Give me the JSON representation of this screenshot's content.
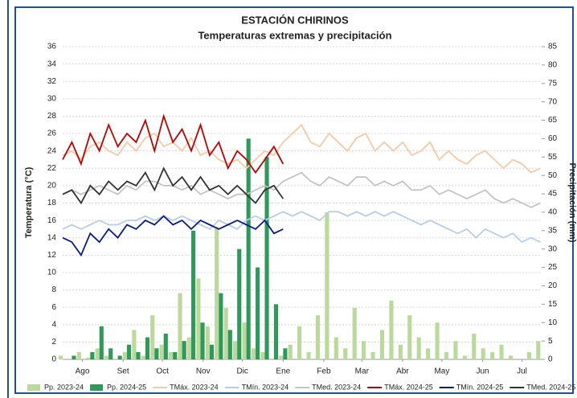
{
  "chart_data": {
    "type": "line",
    "title": "ESTACIÓN CHIRINOS",
    "subtitle": "Temperaturas extremas y precipitación",
    "ylabel": "Temperatura (°C)",
    "y2label": "Precipitación (mm)",
    "xlim": [
      0,
      365
    ],
    "xticks": [
      {
        "value": 15,
        "label": "Ago"
      },
      {
        "value": 46,
        "label": "Set"
      },
      {
        "value": 76,
        "label": "Oct"
      },
      {
        "value": 107,
        "label": "Nov"
      },
      {
        "value": 137,
        "label": "Dic"
      },
      {
        "value": 168,
        "label": "Ene"
      },
      {
        "value": 199,
        "label": "Feb"
      },
      {
        "value": 228,
        "label": "Mar"
      },
      {
        "value": 259,
        "label": "Abr"
      },
      {
        "value": 289,
        "label": "May"
      },
      {
        "value": 320,
        "label": "Jun"
      },
      {
        "value": 350,
        "label": "Jul"
      }
    ],
    "ylim": [
      0,
      36
    ],
    "yticks": [
      0,
      2,
      4,
      6,
      8,
      10,
      12,
      14,
      16,
      18,
      20,
      22,
      24,
      26,
      28,
      30,
      32,
      34,
      36
    ],
    "y2lim": [
      0,
      85
    ],
    "y2ticks": [
      0,
      5,
      10,
      15,
      20,
      25,
      30,
      35,
      40,
      45,
      50,
      55,
      60,
      65,
      70,
      75,
      80,
      85
    ],
    "grid": true,
    "x": [
      0,
      7,
      14,
      21,
      28,
      35,
      42,
      49,
      56,
      63,
      70,
      77,
      84,
      91,
      98,
      105,
      112,
      119,
      126,
      133,
      140,
      147,
      154,
      161,
      168,
      175,
      182,
      189,
      196,
      203,
      210,
      217,
      224,
      231,
      238,
      245,
      252,
      259,
      266,
      273,
      280,
      287,
      294,
      301,
      308,
      315,
      322,
      329,
      336,
      343,
      350,
      357,
      364
    ],
    "series": [
      {
        "name": "Pp. 2023-24",
        "kind": "bar",
        "axis": "y2",
        "color": "#bcd99c",
        "values": [
          1,
          0,
          2,
          0.5,
          3,
          1,
          0,
          2,
          8,
          1,
          12,
          4,
          2,
          18,
          6,
          22,
          9,
          36,
          14,
          5,
          10,
          3,
          2,
          0,
          1,
          4,
          9,
          2,
          12,
          40,
          6,
          3,
          14,
          5,
          2,
          8,
          16,
          4,
          12,
          6,
          3,
          10,
          2,
          5,
          1,
          7,
          3,
          2,
          4,
          1,
          0,
          2,
          5
        ]
      },
      {
        "name": "Pp. 2024-25",
        "kind": "bar",
        "axis": "y2",
        "color": "#2e9a5a",
        "values": [
          0,
          1,
          0,
          2,
          9,
          3,
          1,
          4,
          2,
          6,
          3,
          7,
          2,
          5,
          35,
          10,
          4,
          18,
          8,
          30,
          60,
          25,
          55,
          15,
          3,
          null,
          null,
          null,
          null,
          null,
          null,
          null,
          null,
          null,
          null,
          null,
          null,
          null,
          null,
          null,
          null,
          null,
          null,
          null,
          null,
          null,
          null,
          null,
          null,
          null,
          null,
          null,
          null
        ]
      },
      {
        "name": "TMáx. 2023-24",
        "color": "#f9c9a6",
        "values": [
          23.5,
          24,
          23,
          24.5,
          25,
          24,
          23.5,
          25,
          24,
          25.5,
          26,
          24.5,
          25,
          24,
          25.5,
          23.5,
          24,
          23,
          22.5,
          23,
          22,
          23,
          24,
          23.5,
          25,
          26,
          27,
          25,
          24.5,
          26,
          25,
          24,
          25.5,
          26,
          24,
          25,
          24,
          25,
          23.5,
          24,
          25,
          23,
          24,
          23,
          22.5,
          23.5,
          24,
          23,
          22,
          23,
          22.5,
          21.5,
          22
        ]
      },
      {
        "name": "TMín. 2023-24",
        "color": "#b9cde6",
        "values": [
          15,
          15.5,
          15,
          15.5,
          16,
          15.5,
          15.5,
          16,
          16,
          16.5,
          16,
          16.5,
          16,
          16.5,
          16,
          15.5,
          15,
          16,
          15.5,
          15,
          16,
          16.5,
          16,
          16.5,
          17,
          16.5,
          17,
          16.5,
          16,
          17,
          17,
          16.5,
          17,
          16.5,
          17,
          16.5,
          17,
          16.5,
          16,
          15.5,
          16,
          15.5,
          15,
          14.5,
          15,
          14,
          15,
          14.5,
          14,
          14.5,
          13.5,
          14,
          13.5
        ]
      },
      {
        "name": "TMed. 2023-24",
        "color": "#c4c4c4",
        "values": [
          19,
          19.5,
          19,
          19.5,
          20,
          19.5,
          19,
          20,
          19.5,
          20.5,
          20.5,
          20,
          20,
          19.5,
          20,
          19,
          19.5,
          19,
          18.5,
          19,
          19,
          19.5,
          20,
          19.5,
          20.5,
          21,
          21.5,
          20.5,
          20,
          21,
          20.5,
          20,
          21,
          21,
          20,
          20.5,
          20,
          20.5,
          19.5,
          19.5,
          20,
          19,
          19.5,
          19,
          18.5,
          19,
          19.5,
          18.5,
          18,
          18.5,
          18,
          17.5,
          18
        ]
      },
      {
        "name": "TMáx. 2024-25",
        "color": "#c00000",
        "values": [
          23,
          25,
          22.5,
          26,
          24,
          27,
          24.5,
          26,
          25,
          27.5,
          24,
          28,
          25,
          26.5,
          24,
          27,
          23.5,
          25,
          22,
          24,
          23,
          21.5,
          23,
          24.5,
          22.5,
          null,
          null,
          null,
          null,
          null,
          null,
          null,
          null,
          null,
          null,
          null,
          null,
          null,
          null,
          null,
          null,
          null,
          null,
          null,
          null,
          null,
          null,
          null,
          null,
          null,
          null,
          null,
          null
        ]
      },
      {
        "name": "TMín. 2024-25",
        "color": "#0b1a8c",
        "values": [
          14,
          13.5,
          12,
          14.5,
          13.5,
          15,
          14,
          15.5,
          15,
          16,
          15.5,
          16.5,
          15.5,
          16,
          15,
          16,
          15.5,
          15,
          15.5,
          16,
          15.5,
          15,
          16,
          14.5,
          15,
          null,
          null,
          null,
          null,
          null,
          null,
          null,
          null,
          null,
          null,
          null,
          null,
          null,
          null,
          null,
          null,
          null,
          null,
          null,
          null,
          null,
          null,
          null,
          null,
          null,
          null,
          null,
          null
        ]
      },
      {
        "name": "TMed. 2024-25",
        "color": "#333333",
        "values": [
          19,
          19.5,
          18,
          20,
          19,
          20.5,
          19.5,
          20.5,
          20,
          21.5,
          19.5,
          22,
          20,
          21,
          19.5,
          21,
          19.5,
          20,
          19,
          20,
          19,
          18,
          19.5,
          20,
          18.5,
          null,
          null,
          null,
          null,
          null,
          null,
          null,
          null,
          null,
          null,
          null,
          null,
          null,
          null,
          null,
          null,
          null,
          null,
          null,
          null,
          null,
          null,
          null,
          null,
          null,
          null,
          null,
          null
        ]
      }
    ]
  }
}
